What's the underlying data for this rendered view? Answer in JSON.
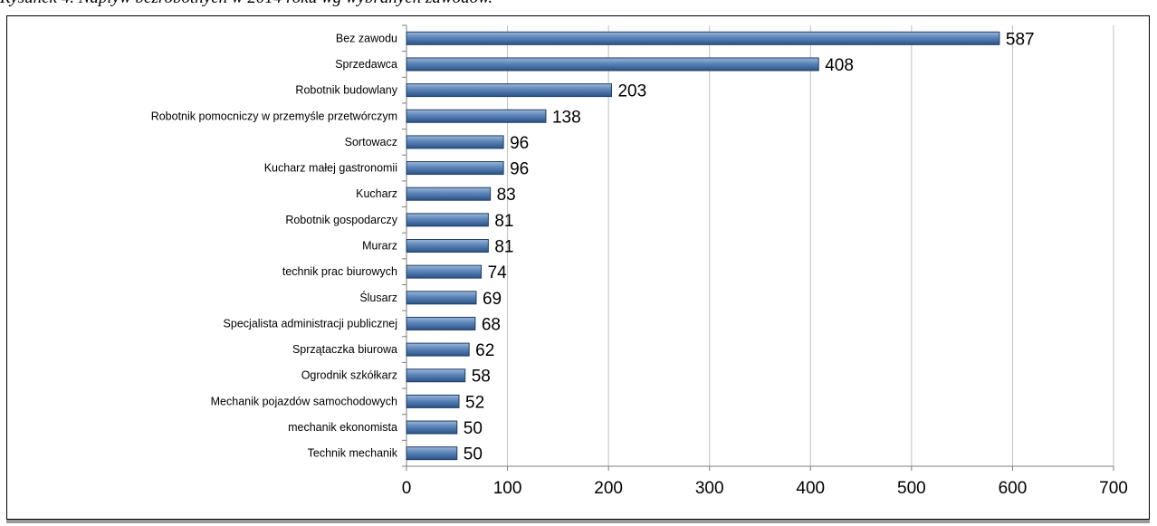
{
  "caption": "Rysunek 4. Napływ bezrobotnych w 2014 roku wg wybranych zawodów.",
  "chart_data": {
    "type": "bar",
    "orientation": "horizontal",
    "categories": [
      "Bez zawodu",
      "Sprzedawca",
      "Robotnik budowlany",
      "Robotnik pomocniczy w przemyśle przetwórczym",
      "Sortowacz",
      "Kucharz małej gastronomii",
      "Kucharz",
      "Robotnik gospodarczy",
      "Murarz",
      "technik prac biurowych",
      "Ślusarz",
      "Specjalista administracji publicznej",
      "Sprzątaczka biurowa",
      "Ogrodnik szkółkarz",
      "Mechanik pojazdów samochodowych",
      "mechanik ekonomista",
      "Technik mechanik"
    ],
    "values": [
      587,
      408,
      203,
      138,
      96,
      96,
      83,
      81,
      81,
      74,
      69,
      68,
      62,
      58,
      52,
      50,
      50
    ],
    "xlim": [
      0,
      700
    ],
    "xticks": [
      0,
      100,
      200,
      300,
      400,
      500,
      600,
      700
    ],
    "grid": true,
    "legend": "none",
    "bar_color": "#4a72a6",
    "bar_edge_color": "#1f3d66",
    "grid_color": "#c0c0c0"
  }
}
